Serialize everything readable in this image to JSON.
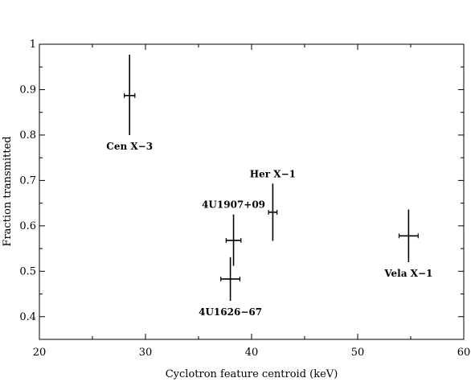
{
  "chart_data": {
    "type": "scatter",
    "title": "",
    "xlabel": "Cyclotron feature centroid (keV)",
    "ylabel": "Fraction transmitted",
    "xlim": [
      20,
      60
    ],
    "ylim": [
      0.35,
      1.0
    ],
    "x_ticks": [
      20,
      30,
      40,
      50,
      60
    ],
    "y_ticks": [
      0.4,
      0.5,
      0.6,
      0.7,
      0.8,
      0.9,
      1
    ],
    "grid": false,
    "points": [
      {
        "label": "Cen X−3",
        "x": 28.5,
        "x_err": 0.5,
        "y": 0.887,
        "y_err_low": 0.087,
        "y_err_high": 0.09,
        "label_pos": "below"
      },
      {
        "label": "Her X−1",
        "x": 42.0,
        "x_err": 0.4,
        "y": 0.63,
        "y_err_low": 0.063,
        "y_err_high": 0.063,
        "label_pos": "above"
      },
      {
        "label": "4U1907+09",
        "x": 38.3,
        "x_err": 0.7,
        "y": 0.568,
        "y_err_low": 0.056,
        "y_err_high": 0.057,
        "label_pos": "above"
      },
      {
        "label": "4U1626−67",
        "x": 38.0,
        "x_err": 0.9,
        "y": 0.483,
        "y_err_low": 0.048,
        "y_err_high": 0.048,
        "label_pos": "below"
      },
      {
        "label": "Vela X−1",
        "x": 54.8,
        "x_err": 0.9,
        "y": 0.578,
        "y_err_low": 0.058,
        "y_err_high": 0.058,
        "label_pos": "below"
      }
    ]
  }
}
